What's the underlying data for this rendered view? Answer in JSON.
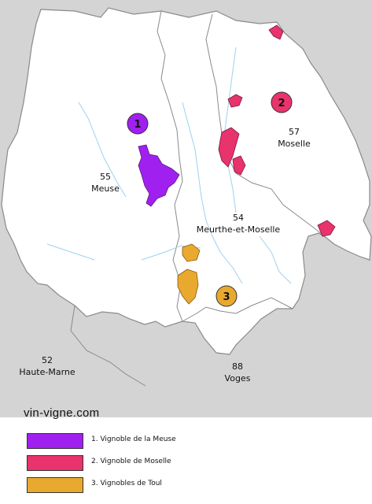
{
  "map": {
    "departments": [
      {
        "id": "meuse",
        "number": "55",
        "name": "Meuse"
      },
      {
        "id": "moselle",
        "number": "57",
        "name": "Moselle"
      },
      {
        "id": "meurthe",
        "number": "54",
        "name": "Meurthe-et-Moselle"
      },
      {
        "id": "haute-marne",
        "number": "52",
        "name": "Haute-Marne"
      },
      {
        "id": "vosges",
        "number": "88",
        "name": "Voges"
      }
    ],
    "badges": [
      {
        "label": "1",
        "color": "#a020f0"
      },
      {
        "label": "2",
        "color": "#e8336d"
      },
      {
        "label": "3",
        "color": "#e8a92e"
      }
    ],
    "colors": {
      "background": "#d4d4d4",
      "region": "#ffffff",
      "rivers": "#9fd1ee",
      "meuse_vineyard": "#a020f0",
      "moselle_vineyard": "#e8336d",
      "toul_vineyard": "#e8a92e"
    }
  },
  "watermark": "vin-vigne.com",
  "legend": [
    {
      "label": "1. Vignoble de la Meuse",
      "color": "#a020f0"
    },
    {
      "label": "2. Vignoble de Moselle",
      "color": "#e8336d"
    },
    {
      "label": "3. Vignobles de Toul",
      "color": "#e8a92e"
    }
  ]
}
